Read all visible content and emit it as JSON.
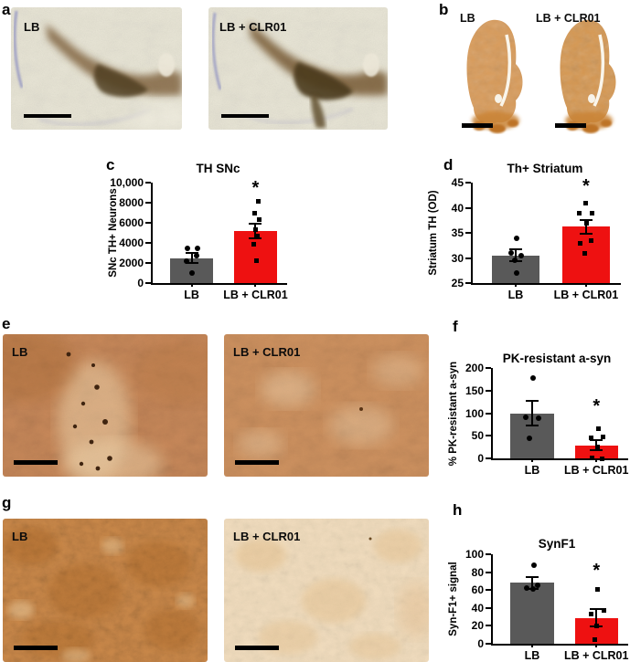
{
  "panels": {
    "a": {
      "letter": "a",
      "images": [
        {
          "label": "LB"
        },
        {
          "label": "LB + CLR01"
        }
      ]
    },
    "b": {
      "letter": "b",
      "images": [
        {
          "label": "LB"
        },
        {
          "label": "LB + CLR01"
        }
      ]
    },
    "c": {
      "letter": "c"
    },
    "d": {
      "letter": "d"
    },
    "e": {
      "letter": "e",
      "images": [
        {
          "label": "LB"
        },
        {
          "label": "LB + CLR01"
        }
      ]
    },
    "f": {
      "letter": "f"
    },
    "g": {
      "letter": "g",
      "images": [
        {
          "label": "LB"
        },
        {
          "label": "LB + CLR01"
        }
      ]
    },
    "h": {
      "letter": "h"
    }
  },
  "colors": {
    "bar_gray": "#595959",
    "bar_red": "#ee1111",
    "points": "#000000"
  },
  "chart_data": [
    {
      "panel": "c",
      "type": "bar",
      "title": "TH SNc",
      "ylabel": "SNc TH+ Neurons",
      "categories": [
        "LB",
        "LB + CLR01"
      ],
      "values": [
        2500,
        5200
      ],
      "errors": [
        500,
        750
      ],
      "points": [
        [
          3500,
          3500,
          2700,
          2200,
          1000
        ],
        [
          8100,
          7000,
          6300,
          5300,
          4700,
          3900,
          2200
        ]
      ],
      "point_dx": [
        [
          -5,
          6,
          5,
          -6,
          0
        ],
        [
          3,
          -1,
          4,
          0,
          2,
          -2,
          1
        ]
      ],
      "point_shapes": [
        "circle",
        "square"
      ],
      "ylim": [
        0,
        10000
      ],
      "yticks": [
        0,
        2000,
        4000,
        6000,
        8000,
        10000
      ],
      "ytick_labels": [
        "0",
        "2000",
        "4000",
        "6000",
        "8000",
        "10,000"
      ],
      "bar_colors": [
        "#595959",
        "#ee1111"
      ],
      "significance": {
        "group": 1,
        "marker": "*",
        "y": 9300
      },
      "grid": false,
      "legend": "none"
    },
    {
      "panel": "d",
      "type": "bar",
      "title": "Th+ Striatum",
      "ylabel": "Striatum TH (OD)",
      "categories": [
        "LB",
        "LB + CLR01"
      ],
      "values": [
        30.5,
        36.2
      ],
      "errors": [
        1.2,
        1.4
      ],
      "points": [
        [
          34,
          31,
          30.5,
          29.5,
          27
        ],
        [
          41,
          39,
          39,
          37,
          33.5,
          33,
          31
        ]
      ],
      "point_dx": [
        [
          1,
          -5,
          6,
          -1,
          1
        ],
        [
          0,
          -7,
          7,
          1,
          6,
          -6,
          -1
        ]
      ],
      "point_shapes": [
        "circle",
        "square"
      ],
      "ylim": [
        25,
        45
      ],
      "yticks": [
        25,
        30,
        35,
        40,
        45
      ],
      "ytick_labels": [
        "25",
        "30",
        "35",
        "40",
        "45"
      ],
      "bar_colors": [
        "#595959",
        "#ee1111"
      ],
      "significance": {
        "group": 1,
        "marker": "*",
        "y": 44
      },
      "grid": false,
      "legend": "none"
    },
    {
      "panel": "f",
      "type": "bar",
      "title": "PK-resistant a-syn",
      "ylabel": "% PK-resistant a-syn",
      "categories": [
        "LB",
        "LB + CLR01"
      ],
      "values": [
        100,
        29
      ],
      "errors": [
        28,
        11
      ],
      "points": [
        [
          178,
          90,
          88,
          44
        ],
        [
          66,
          47,
          45,
          25,
          2,
          0
        ]
      ],
      "point_dx": [
        [
          1,
          -7,
          7,
          -3
        ],
        [
          2,
          7,
          -6,
          1,
          -5,
          6
        ]
      ],
      "point_shapes": [
        "circle",
        "square"
      ],
      "ylim": [
        0,
        200
      ],
      "yticks": [
        0,
        50,
        100,
        150,
        200
      ],
      "ytick_labels": [
        "0",
        "50",
        "100",
        "150",
        "200"
      ],
      "bar_colors": [
        "#595959",
        "#ee1111"
      ],
      "significance": {
        "group": 1,
        "marker": "*",
        "y": 112
      },
      "grid": false,
      "legend": "none"
    },
    {
      "panel": "h",
      "type": "bar",
      "title": "SynF1",
      "ylabel": "Syn-F1+ signal",
      "categories": [
        "LB",
        "LB + CLR01"
      ],
      "values": [
        68,
        29
      ],
      "errors": [
        7,
        10
      ],
      "points": [
        [
          88,
          65,
          62,
          61
        ],
        [
          61,
          37,
          33,
          20,
          5
        ]
      ],
      "point_dx": [
        [
          2,
          6,
          -6,
          1
        ],
        [
          1,
          8,
          -6,
          0,
          -2
        ]
      ],
      "point_shapes": [
        "circle",
        "square"
      ],
      "ylim": [
        0,
        100
      ],
      "yticks": [
        0,
        20,
        40,
        60,
        80,
        100
      ],
      "ytick_labels": [
        "0",
        "20",
        "40",
        "60",
        "80",
        "100"
      ],
      "bar_colors": [
        "#595959",
        "#ee1111"
      ],
      "significance": {
        "group": 1,
        "marker": "*",
        "y": 80
      },
      "grid": false,
      "legend": "none"
    }
  ]
}
